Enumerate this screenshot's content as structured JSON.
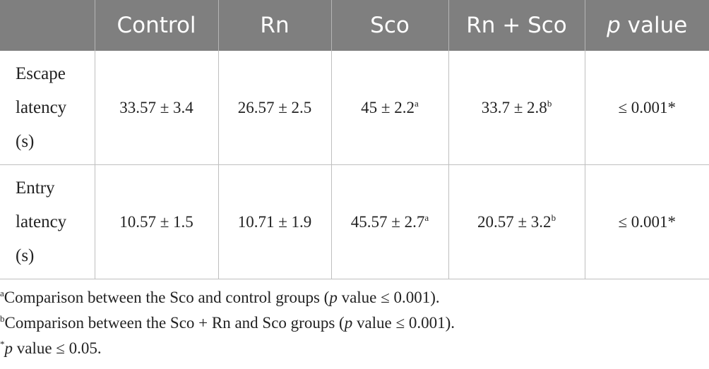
{
  "table": {
    "headers": [
      "",
      "Control",
      "Rn",
      "Sco",
      "Rn + Sco",
      "value"
    ],
    "p_header_italic": "p",
    "rows": [
      {
        "label_lines": [
          "Escape",
          "latency",
          "(s)"
        ],
        "cells": [
          {
            "value": "33.57 ± 3.4",
            "sup": ""
          },
          {
            "value": "26.57 ± 2.5",
            "sup": ""
          },
          {
            "value": "45 ± 2.2",
            "sup": "a"
          },
          {
            "value": "33.7 ± 2.8",
            "sup": "b"
          },
          {
            "value": "≤ 0.001*",
            "sup": ""
          }
        ]
      },
      {
        "label_lines": [
          "Entry",
          "latency",
          "(s)"
        ],
        "cells": [
          {
            "value": "10.57 ± 1.5",
            "sup": ""
          },
          {
            "value": "10.71 ± 1.9",
            "sup": ""
          },
          {
            "value": "45.57 ± 2.7",
            "sup": "a"
          },
          {
            "value": "20.57 ± 3.2",
            "sup": "b"
          },
          {
            "value": "≤ 0.001*",
            "sup": ""
          }
        ]
      }
    ]
  },
  "footnotes": [
    {
      "mark": "a",
      "pre": "Comparison between the Sco and control groups (",
      "italic": "p",
      "post": " value ≤ 0.001)."
    },
    {
      "mark": "b",
      "pre": "Comparison between the Sco + Rn and Sco groups (",
      "italic": "p",
      "post": " value ≤ 0.001)."
    },
    {
      "mark": "*",
      "pre": "",
      "italic": "p",
      "post": " value ≤ 0.05."
    }
  ]
}
